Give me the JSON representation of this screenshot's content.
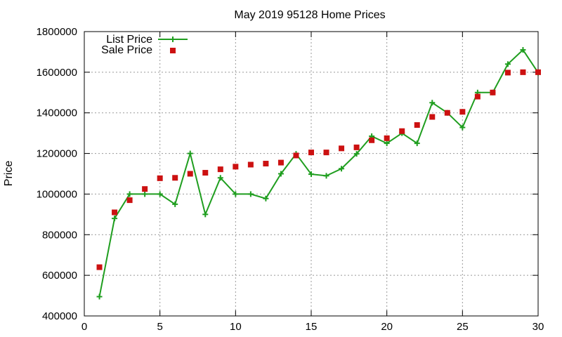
{
  "chart_data": {
    "type": "line",
    "title": "May 2019 95128 Home Prices",
    "xlabel": "",
    "ylabel": "Price",
    "xlim": [
      0,
      30
    ],
    "ylim": [
      400000,
      1800000
    ],
    "x_ticks": [
      0,
      5,
      10,
      15,
      20,
      25,
      30
    ],
    "x_tick_labels": [
      "0",
      "5",
      "10",
      "15",
      "20",
      "25",
      "30"
    ],
    "y_ticks": [
      400000,
      600000,
      800000,
      1000000,
      1200000,
      1400000,
      1600000,
      1800000
    ],
    "y_tick_labels": [
      "400000",
      "600000",
      "800000",
      "1000000",
      "1200000",
      "1400000",
      "1600000",
      "1800000"
    ],
    "grid": true,
    "legend_position": "top-left",
    "x": [
      1,
      2,
      3,
      4,
      5,
      6,
      7,
      8,
      9,
      10,
      11,
      12,
      13,
      14,
      15,
      16,
      17,
      18,
      19,
      20,
      21,
      22,
      23,
      24,
      25,
      26,
      27,
      28,
      29,
      30
    ],
    "series": [
      {
        "name": "List Price",
        "style": "line+cross",
        "color": "#1f9e1f",
        "values": [
          495000,
          880000,
          1000000,
          1000000,
          1000000,
          950000,
          1200000,
          900000,
          1080000,
          1000000,
          1000000,
          978000,
          1100000,
          1198000,
          1098000,
          1090000,
          1125000,
          1198000,
          1285000,
          1250000,
          1300000,
          1250000,
          1450000,
          1400000,
          1328000,
          1500000,
          1500000,
          1640000,
          1710000,
          1598000
        ]
      },
      {
        "name": "Sale Price",
        "style": "square-marker",
        "color": "#cc1111",
        "values": [
          640000,
          910000,
          970000,
          1025000,
          1078000,
          1080000,
          1100000,
          1105000,
          1122000,
          1135000,
          1145000,
          1150000,
          1155000,
          1190000,
          1205000,
          1205000,
          1225000,
          1230000,
          1265000,
          1275000,
          1310000,
          1340000,
          1380000,
          1400000,
          1405000,
          1480000,
          1500000,
          1598000,
          1600000,
          1600000
        ]
      }
    ]
  }
}
